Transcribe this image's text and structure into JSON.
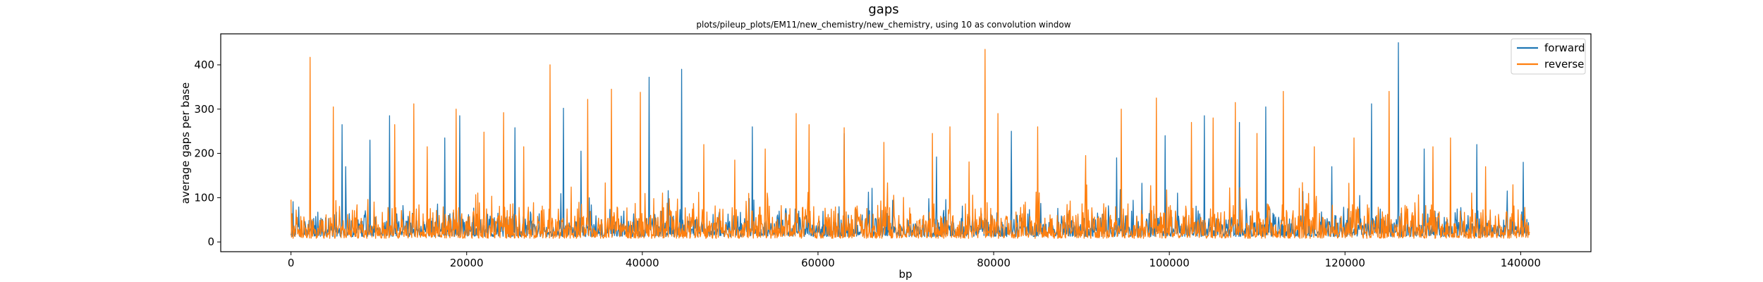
{
  "chart_data": {
    "type": "line",
    "title": "gaps",
    "subtitle": "plots/pileup_plots/EM11/new_chemistry/new_chemistry, using 10 as convolution window",
    "xlabel": "bp",
    "ylabel": "average gaps per base",
    "xlim": [
      -8000,
      148000
    ],
    "ylim": [
      -22,
      470
    ],
    "x_ticks": [
      0,
      20000,
      40000,
      60000,
      80000,
      100000,
      120000,
      140000
    ],
    "x_tick_labels": [
      "0",
      "20000",
      "40000",
      "60000",
      "80000",
      "100000",
      "120000",
      "140000"
    ],
    "y_ticks": [
      0,
      100,
      200,
      300,
      400
    ],
    "y_tick_labels": [
      "0",
      "100",
      "200",
      "300",
      "400"
    ],
    "x_range": [
      0,
      141000
    ],
    "grid": false,
    "legend_position": "top-right",
    "series": [
      {
        "name": "forward",
        "color": "#1f77b4",
        "baseline": 12,
        "band_max": 65,
        "peaks": [
          [
            5800,
            265
          ],
          [
            6200,
            170
          ],
          [
            9000,
            230
          ],
          [
            11200,
            285
          ],
          [
            17500,
            235
          ],
          [
            19200,
            285
          ],
          [
            25500,
            258
          ],
          [
            31000,
            302
          ],
          [
            33000,
            205
          ],
          [
            40800,
            372
          ],
          [
            44500,
            390
          ],
          [
            52500,
            260
          ],
          [
            63000,
            245
          ],
          [
            73500,
            192
          ],
          [
            82000,
            250
          ],
          [
            94000,
            190
          ],
          [
            99500,
            240
          ],
          [
            104000,
            285
          ],
          [
            108000,
            270
          ],
          [
            111000,
            305
          ],
          [
            118500,
            170
          ],
          [
            123000,
            312
          ],
          [
            126100,
            450
          ],
          [
            129000,
            210
          ],
          [
            135000,
            220
          ],
          [
            138500,
            115
          ],
          [
            140300,
            180
          ]
        ]
      },
      {
        "name": "reverse",
        "color": "#ff7f0e",
        "baseline": 8,
        "band_max": 90,
        "peaks": [
          [
            2200,
            417
          ],
          [
            4800,
            305
          ],
          [
            11800,
            265
          ],
          [
            14000,
            312
          ],
          [
            15500,
            215
          ],
          [
            18800,
            300
          ],
          [
            22000,
            248
          ],
          [
            24200,
            292
          ],
          [
            26500,
            215
          ],
          [
            29500,
            400
          ],
          [
            33800,
            322
          ],
          [
            36500,
            345
          ],
          [
            39800,
            338
          ],
          [
            47000,
            220
          ],
          [
            50500,
            185
          ],
          [
            54000,
            210
          ],
          [
            57500,
            290
          ],
          [
            59000,
            265
          ],
          [
            63000,
            258
          ],
          [
            67500,
            225
          ],
          [
            73000,
            245
          ],
          [
            75000,
            260
          ],
          [
            79000,
            435
          ],
          [
            80500,
            290
          ],
          [
            85000,
            260
          ],
          [
            90500,
            195
          ],
          [
            94500,
            300
          ],
          [
            98500,
            325
          ],
          [
            102500,
            270
          ],
          [
            105000,
            280
          ],
          [
            107500,
            315
          ],
          [
            110000,
            245
          ],
          [
            113000,
            340
          ],
          [
            116500,
            215
          ],
          [
            121000,
            235
          ],
          [
            125000,
            340
          ],
          [
            130000,
            215
          ],
          [
            132000,
            235
          ],
          [
            136000,
            170
          ]
        ]
      }
    ]
  }
}
